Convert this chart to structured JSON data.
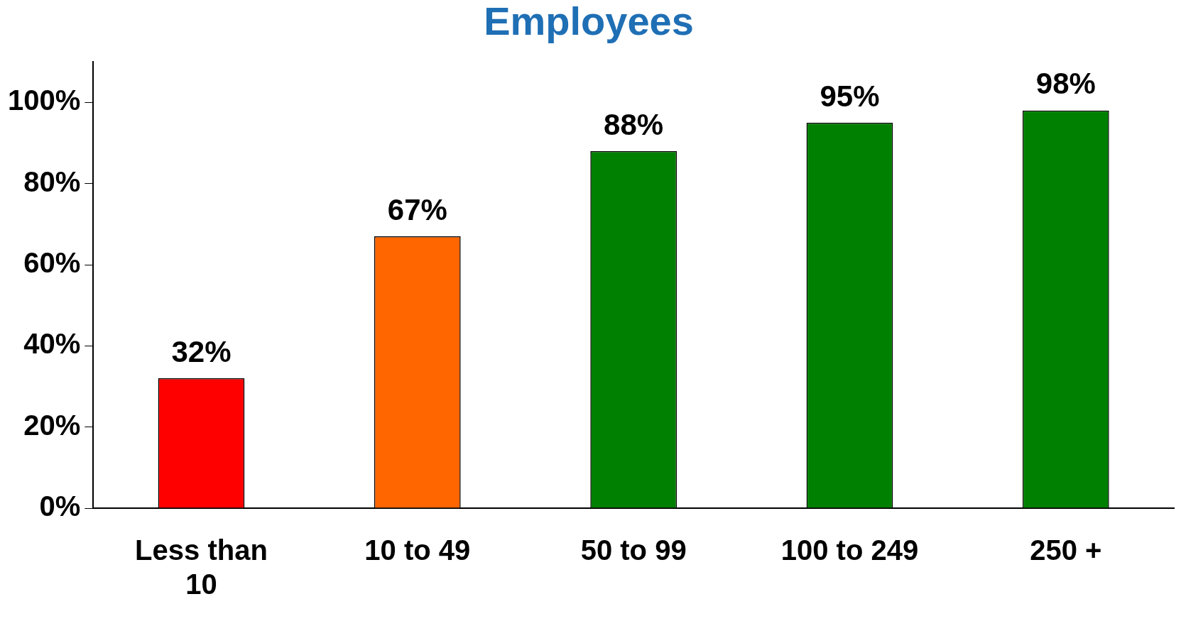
{
  "chart_data": {
    "type": "bar",
    "title": "Employees",
    "categories": [
      "Less than 10",
      "10 to 49",
      "50 to 99",
      "100 to 249",
      "250 +"
    ],
    "values": [
      32,
      67,
      88,
      95,
      98
    ],
    "colors": [
      "#ff0000",
      "#ff6600",
      "#008000",
      "#008000",
      "#008000"
    ],
    "value_labels": [
      "32%",
      "67%",
      "88%",
      "95%",
      "98%"
    ],
    "ylim": [
      0,
      110
    ],
    "yticks": [
      {
        "value": 0,
        "label": "0%"
      },
      {
        "value": 20,
        "label": "20%"
      },
      {
        "value": 40,
        "label": "40%"
      },
      {
        "value": 60,
        "label": "60%"
      },
      {
        "value": 80,
        "label": "80%"
      },
      {
        "value": 100,
        "label": "100%"
      }
    ],
    "grid": false,
    "legend": false
  }
}
